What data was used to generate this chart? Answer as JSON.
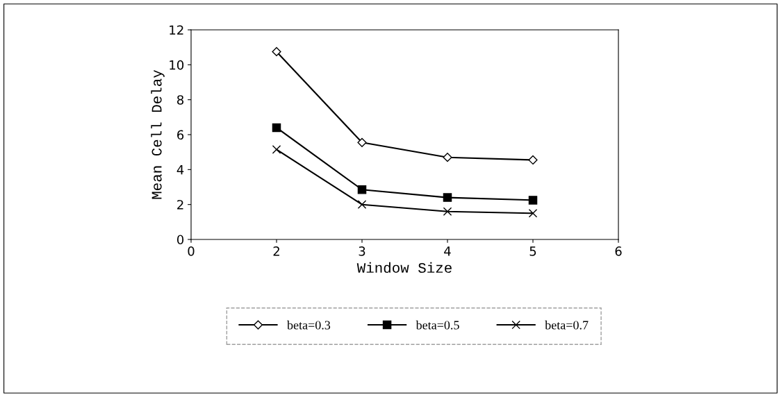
{
  "chart_data": {
    "type": "line",
    "xlabel": "Window Size",
    "ylabel": "Mean Cell Delay",
    "categories": [
      "0",
      "2",
      "3",
      "4",
      "5",
      "6"
    ],
    "series": [
      {
        "name": "beta=0.3",
        "color": "#000000",
        "marker": "diamond",
        "values": [
          null,
          10.75,
          5.55,
          4.7,
          4.55,
          null
        ]
      },
      {
        "name": "beta=0.5",
        "color": "#000000",
        "marker": "square",
        "values": [
          null,
          6.4,
          2.85,
          2.4,
          2.25,
          null
        ]
      },
      {
        "name": "beta=0.7",
        "color": "#000000",
        "marker": "cross",
        "values": [
          null,
          5.15,
          2.0,
          1.6,
          1.5,
          null
        ]
      }
    ],
    "ylim": [
      0,
      12
    ],
    "yticks": [
      0,
      2,
      4,
      6,
      8,
      10,
      12
    ],
    "grid": false,
    "legend": "bottom",
    "line_style": "solid"
  }
}
